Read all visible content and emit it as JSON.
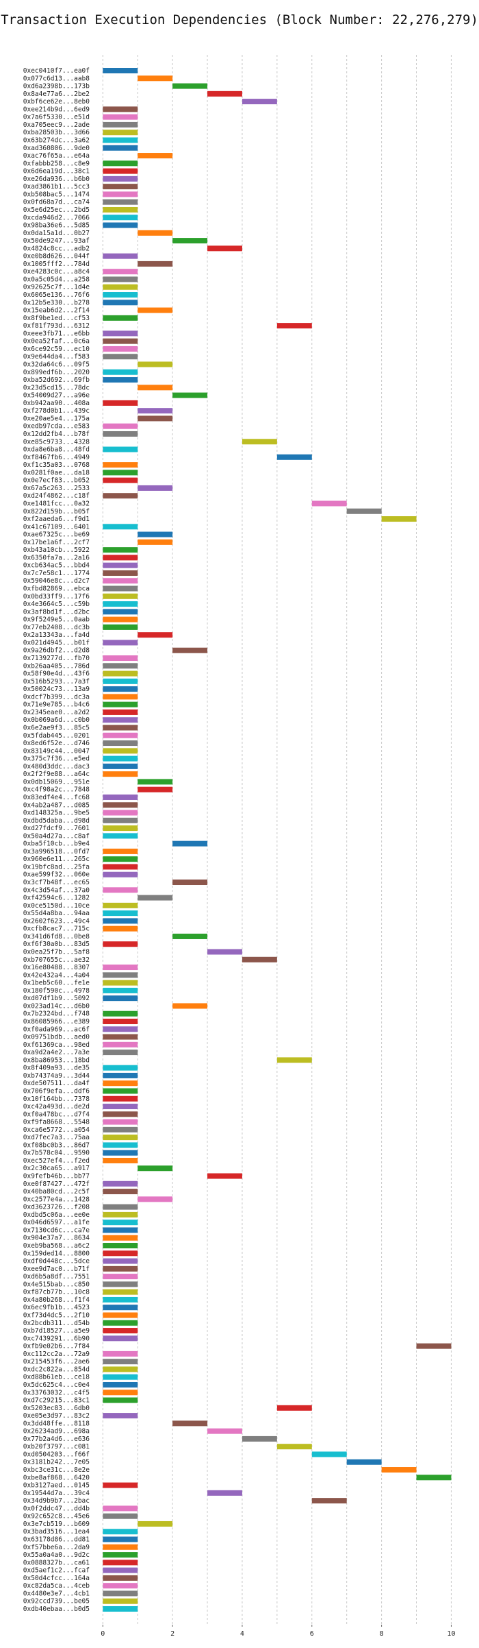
{
  "chart_data": {
    "type": "bar",
    "orientation": "horizontal",
    "title": "Transaction Execution Dependencies (Block Number: 22,276,279)",
    "xlabel": "",
    "ylabel": "",
    "xlim": [
      -0.3,
      10.6
    ],
    "xticks": [
      0,
      2,
      4,
      6,
      8,
      10
    ],
    "grid": "vertical-dashed",
    "colors": [
      "#1f77b4",
      "#ff7f0e",
      "#2ca02c",
      "#d62728",
      "#9467bd",
      "#8c564b",
      "#e377c2",
      "#7f7f7f",
      "#bcbd22",
      "#17becf"
    ],
    "transactions": [
      "0xec0410f7...ea0f",
      "0x077c6d13...aab8",
      "0xd6a2398b...173b",
      "0x8a4e77a6...2be2",
      "0xbf6ce62e...8eb0",
      "0xee214b9d...6ed9",
      "0x7a6f5330...e51d",
      "0xa705eec9...2ade",
      "0xba28503b...3d66",
      "0x63b274dc...3a62",
      "0xad360806...9de0",
      "0xac76f65a...e64a",
      "0xfabbb258...c8e9",
      "0x6d6ea19d...38c1",
      "0xe26da936...b6b0",
      "0xad3861b1...5cc3",
      "0xb508bac5...1474",
      "0x0fd68a7d...ca74",
      "0x5e6d25ec...2bd5",
      "0xcda946d2...7066",
      "0x98ba36e6...5d85",
      "0x0da15a1d...0b27",
      "0x50de9247...93af",
      "0x4824c8cc...adb2",
      "0xe0b8d626...044f",
      "0x1005fff2...784d",
      "0xe4283c0c...a8c4",
      "0x0a5c05d4...a258",
      "0x92625c7f...1d4e",
      "0x6065e136...76f6",
      "0x12b5e330...b278",
      "0x15eab6d2...2f14",
      "0x8f9be1ed...cf53",
      "0xf81f793d...6312",
      "0xeee3fb71...e6bb",
      "0x0ea52faf...0c6a",
      "0x6ce92c59...ec10",
      "0x9e644da4...f583",
      "0x32da64c6...09f5",
      "0x899edf6b...2020",
      "0xba52d692...69fb",
      "0x23d5cd15...78dc",
      "0x54009d27...a96e",
      "0xb942aa90...408a",
      "0xf278d0b1...439c",
      "0xe20ae5e4...175a",
      "0xedb97cda...e583",
      "0x12dd2fb4...b78f",
      "0xe85c9733...4328",
      "0xda8e6ba8...48fd",
      "0xf8467fb6...4949",
      "0xf1c35a03...0768",
      "0x0281f0ae...da18",
      "0x0e7ecf83...b052",
      "0x67a5c263...2533",
      "0xd24f4862...c18f",
      "0xe1481fcc...0a32",
      "0x822d159b...b05f",
      "0xf2aaeda6...f9d1",
      "0x41c67109...6401",
      "0xae67325c...be69",
      "0x17be1a6f...2cf7",
      "0xb43a10cb...5922",
      "0x6350fa7a...2a16",
      "0xcb634ac5...bbd4",
      "0x7c7e58c1...1774",
      "0x59046e8c...d2c7",
      "0xfbd82869...ebca",
      "0x0bd33ff9...17f6",
      "0x4e3664c5...c59b",
      "0x3af8bd1f...d2bc",
      "0x9f5249e5...0aab",
      "0x77eb2408...dc3b",
      "0x2a13343a...fa4d",
      "0x021d4945...b01f",
      "0x9a26dbf2...d2d8",
      "0x7139277d...fb70",
      "0xb26aa405...786d",
      "0x58f90e4d...43f6",
      "0x516b5293...7a3f",
      "0x50024c73...13a9",
      "0xdcf7b399...dc3a",
      "0x71e9e785...b4c6",
      "0x2345eae0...a2d2",
      "0x0b069a6d...c0b0",
      "0x6e2ae9f3...85c5",
      "0x5fdab445...0201",
      "0x8ed6f52e...d746",
      "0x83149c44...0047",
      "0x375c7f36...e5ed",
      "0x480d3ddc...dac3",
      "0x2f2f9e88...a64c",
      "0x0db15069...951e",
      "0xc4f98a2c...7848",
      "0x83edf4e4...fc68",
      "0x4ab2a487...d085",
      "0xd148325a...9be5",
      "0xdbd5daba...d98d",
      "0xd27fdcf9...7601",
      "0x50a4d27a...c8af",
      "0xba5f10cb...b9e4",
      "0x3a996518...0fd7",
      "0x960e6e11...265c",
      "0x19bfc8ad...25fa",
      "0xae599f32...060e",
      "0x3cf7b48f...ec65",
      "0x4c3d54af...37a0",
      "0xf42594c6...1282",
      "0x0ce5150d...10ce",
      "0x55d4a8ba...94aa",
      "0x2602f623...49c4",
      "0xcfb8cac7...715c",
      "0x341d6fd8...0be8",
      "0xf6f30a0b...83d5",
      "0x0ea25f7b...5af8",
      "0xb707655c...ae32",
      "0x16e80488...8307",
      "0x42e432a4...4a04",
      "0x1beb5c60...fe1e",
      "0x180f590c...4978",
      "0xd07df1b9...5092",
      "0x023ad14c...d6b0",
      "0x7b2324bd...f748",
      "0x86085966...e389",
      "0xf0ada969...ac6f",
      "0x09751bdb...aed0",
      "0xf61369ca...98ed",
      "0xa9d2a4e2...7a3e",
      "0x8ba86953...18bd",
      "0x8f409a93...de35",
      "0xb74374a9...3d44",
      "0xde507511...da4f",
      "0x706f9efa...ddf6",
      "0x10f164bb...7378",
      "0xc42a493d...de2d",
      "0xf0a478bc...d7f4",
      "0xf9fa8668...5548",
      "0xca6e5772...a054",
      "0xd7fec7a3...75aa",
      "0xf08bc0b3...86d7",
      "0x7b578c04...9590",
      "0xec527ef4...f2ed",
      "0x2c30ca65...a917",
      "0x9fefb46b...bb77",
      "0xe0f87427...472f",
      "0x40ba80cd...2c5f",
      "0xc2577e4a...1428",
      "0xd3623726...f208",
      "0xdbd5c06a...ee0e",
      "0x046d6597...a1fe",
      "0x7130cd6c...ca7e",
      "0x904e37a7...8634",
      "0xeb9ba568...a6c2",
      "0x159ded14...8800",
      "0xdf0d448c...5dce",
      "0xee9d7ac0...b71f",
      "0xd6b5a8df...7551",
      "0x4e515bab...c850",
      "0xf87cb77b...10c8",
      "0x4a80b268...f1f4",
      "0x6ec9fb1b...4523",
      "0xf73d4dc5...2f10",
      "0x2bcdb311...d54b",
      "0xb7d18527...a5e9",
      "0xc7439291...6b90",
      "0xfb9e02b6...7f84",
      "0xc112cc2a...72a9",
      "0x215453f6...2ae6",
      "0xdc2c822a...854d",
      "0xd88b61eb...ce18",
      "0x5dc625c4...c0e4",
      "0x33763032...c4f5",
      "0xd7c29215...83c1",
      "0x5203ec83...6db0",
      "0xe05e3d97...83c2",
      "0x3dd48ffe...8118",
      "0x26234ad9...698a",
      "0x77b2a4d6...e636",
      "0xb20f3797...c081",
      "0xd0504203...f66f",
      "0x3181b242...7e05",
      "0xbc3ce31c...8e2e",
      "0xbe8af868...6420",
      "0xb3127aed...0145",
      "0x19544d7a...39c4",
      "0x34d9b9b7...2bac",
      "0x0f2ddc47...dd4b",
      "0x92c652c8...45e6",
      "0x3e7cb519...b609",
      "0x3bad3516...1ea4",
      "0x63178d86...dd81",
      "0xf57bbe6a...2da9",
      "0x55a0a4a0...9d2c",
      "0x0888327b...ca61",
      "0xd5aef1c2...fcaf",
      "0x50d4cfcc...164a",
      "0xc82da5ca...4ceb",
      "0x4480e3e7...4cb1",
      "0x92ccd739...be05",
      "0xdb40ebaa...b0d5"
    ],
    "start": [
      0,
      1,
      2,
      3,
      4,
      0,
      0,
      0,
      0,
      0,
      0,
      1,
      0,
      0,
      0,
      0,
      0,
      0,
      0,
      0,
      0,
      1,
      2,
      3,
      0,
      1,
      0,
      0,
      0,
      0,
      0,
      1,
      0,
      5,
      0,
      0,
      0,
      0,
      1,
      0,
      0,
      1,
      2,
      0,
      1,
      1,
      0,
      0,
      4,
      0,
      5,
      0,
      0,
      0,
      1,
      0,
      6,
      7,
      8,
      0,
      1,
      1,
      0,
      0,
      0,
      0,
      0,
      0,
      0,
      0,
      0,
      0,
      0,
      1,
      0,
      2,
      0,
      0,
      0,
      0,
      0,
      0,
      0,
      0,
      0,
      0,
      0,
      0,
      0,
      0,
      0,
      0,
      1,
      1,
      0,
      0,
      0,
      0,
      0,
      0,
      2,
      0,
      0,
      0,
      0,
      2,
      0,
      1,
      0,
      0,
      0,
      0,
      2,
      0,
      3,
      4,
      0,
      0,
      0,
      0,
      0,
      2,
      0,
      0,
      0,
      0,
      0,
      0,
      5,
      0,
      0,
      0,
      0,
      0,
      0,
      0,
      0,
      0,
      0,
      0,
      0,
      0,
      1,
      3,
      0,
      0,
      1,
      0,
      0,
      0,
      0,
      0,
      0,
      0,
      0,
      0,
      0,
      0,
      0,
      0,
      0,
      0,
      0,
      0,
      0,
      9,
      0,
      0,
      0,
      0,
      0,
      0,
      0,
      5,
      0,
      2,
      3,
      4,
      5,
      6,
      7,
      8,
      9,
      0,
      3,
      6,
      0,
      0,
      1,
      0,
      0,
      0,
      0,
      0,
      0,
      0,
      0,
      0,
      0,
      0
    ],
    "color_index": [
      0,
      1,
      2,
      3,
      4,
      5,
      6,
      7,
      8,
      9,
      0,
      1,
      2,
      3,
      4,
      5,
      6,
      7,
      8,
      9,
      0,
      1,
      2,
      3,
      4,
      5,
      6,
      7,
      8,
      9,
      0,
      1,
      2,
      3,
      4,
      5,
      6,
      7,
      8,
      9,
      0,
      1,
      2,
      3,
      4,
      5,
      6,
      7,
      8,
      9,
      0,
      1,
      2,
      3,
      4,
      5,
      6,
      7,
      8,
      9,
      0,
      1,
      2,
      3,
      4,
      5,
      6,
      7,
      8,
      9,
      0,
      1,
      2,
      3,
      4,
      5,
      6,
      7,
      8,
      9,
      0,
      1,
      2,
      3,
      4,
      5,
      6,
      7,
      8,
      9,
      0,
      1,
      2,
      3,
      4,
      5,
      6,
      7,
      8,
      9,
      0,
      1,
      2,
      3,
      4,
      5,
      6,
      7,
      8,
      9,
      0,
      1,
      2,
      3,
      4,
      5,
      6,
      7,
      8,
      9,
      0,
      1,
      2,
      3,
      4,
      5,
      6,
      7,
      8,
      9,
      0,
      1,
      2,
      3,
      4,
      5,
      6,
      7,
      8,
      9,
      0,
      1,
      2,
      3,
      4,
      5,
      6,
      7,
      8,
      9,
      0,
      1,
      2,
      3,
      4,
      5,
      6,
      7,
      8,
      9,
      0,
      1,
      2,
      3,
      4,
      5,
      6,
      7,
      8,
      9,
      0,
      1,
      2,
      3,
      4,
      5,
      6,
      7,
      8,
      9,
      0,
      1,
      2,
      3,
      4,
      5,
      6,
      7,
      8,
      9,
      0,
      1,
      2,
      3,
      4,
      5,
      6,
      7,
      8,
      9
    ],
    "duration": 1
  }
}
